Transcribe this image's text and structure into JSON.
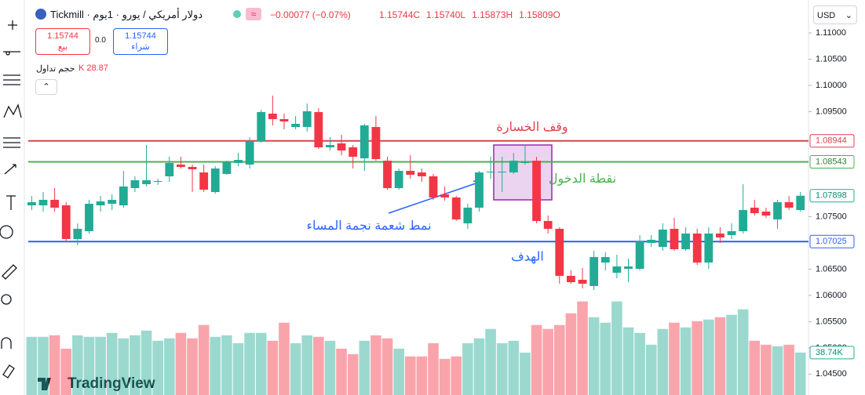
{
  "toolbar": {
    "symbol": "دولار أمريكي / يورو · 1يوم · Tickmill",
    "mode_icon": "≈",
    "change": "−0.00077 (−0.07%)",
    "ohlc": [
      "1.15744C",
      "1.15740L",
      "1.15873H",
      "1.15809O"
    ],
    "sell_price": "1.15744",
    "sell_label": "بيع",
    "spread": "0.0",
    "buy_price": "1.15744",
    "buy_label": "شراء",
    "volume_label": "حجم تداول",
    "volume_value": "K 28.87"
  },
  "currency": "USD",
  "logo": "TradingView",
  "chart_data": {
    "type": "candlestick",
    "up_color": "#22ab94",
    "down_color": "#f23645",
    "open": [
      1.07715,
      1.07715,
      1.0782,
      1.07715,
      1.07073,
      1.07223,
      1.07715,
      1.07745,
      1.07715,
      1.08044,
      1.08119,
      1.08163,
      1.08268,
      1.08492,
      1.08447,
      1.08342,
      1.07969,
      1.08313,
      1.08522,
      1.08492,
      1.0894,
      1.09462,
      1.09358,
      1.09208,
      1.09208,
      1.09492,
      1.0882,
      1.08895,
      1.0882,
      1.08611,
      1.09208,
      1.08566,
      1.08044,
      1.08372,
      1.08342,
      1.08268,
      1.07924,
      1.07865,
      1.07372,
      1.07671,
      1.08342,
      1.08342,
      1.08342,
      1.08522,
      1.08566,
      1.07417,
      1.07268,
      1.06372,
      1.06297,
      1.06178,
      1.06626,
      1.06431,
      1.06506,
      1.06506,
      1.06999,
      1.06924,
      1.07268,
      1.06879,
      1.07178,
      1.06626,
      1.07178,
      1.07148,
      1.07223,
      1.07671,
      1.07596,
      1.07447,
      1.07775,
      1.07626
    ],
    "high": [
      1.07895,
      1.07969,
      1.08044,
      1.07775,
      1.07372,
      1.0782,
      1.07895,
      1.07924,
      1.08372,
      1.08268,
      1.08865,
      1.08223,
      1.08641,
      1.08641,
      1.08492,
      1.08492,
      1.08462,
      1.08566,
      1.08716,
      1.09014,
      1.09537,
      1.09806,
      1.09462,
      1.09417,
      1.09656,
      1.09567,
      1.09014,
      1.09059,
      1.08865,
      1.09268,
      1.09417,
      1.08641,
      1.08417,
      1.08671,
      1.08417,
      1.08313,
      1.08074,
      1.07895,
      1.07745,
      1.08372,
      1.08641,
      1.08641,
      1.08716,
      1.08865,
      1.08641,
      1.07521,
      1.07297,
      1.06476,
      1.06521,
      1.0685,
      1.0682,
      1.06775,
      1.067,
      1.07148,
      1.07148,
      1.07372,
      1.07477,
      1.07297,
      1.07268,
      1.07297,
      1.07297,
      1.07372,
      1.08119,
      1.0782,
      1.07671,
      1.0782,
      1.07895,
      1.07969
    ],
    "low": [
      1.07626,
      1.07596,
      1.07596,
      1.07029,
      1.06954,
      1.07178,
      1.07596,
      1.07626,
      1.07671,
      1.07969,
      1.08074,
      1.08104,
      1.08163,
      1.08417,
      1.07969,
      1.07969,
      1.07939,
      1.08298,
      1.08462,
      1.08417,
      1.0891,
      1.09238,
      1.09164,
      1.09164,
      1.09119,
      1.0879,
      1.08761,
      1.08671,
      1.08417,
      1.08372,
      1.08566,
      1.08014,
      1.08014,
      1.08223,
      1.08163,
      1.0782,
      1.07805,
      1.07417,
      1.07268,
      1.07596,
      1.08223,
      1.07969,
      1.08313,
      1.08492,
      1.07372,
      1.07178,
      1.06222,
      1.06222,
      1.06133,
      1.06103,
      1.06476,
      1.06327,
      1.06252,
      1.06476,
      1.06924,
      1.0685,
      1.0685,
      1.0685,
      1.06581,
      1.06506,
      1.06999,
      1.07073,
      1.07178,
      1.07521,
      1.07477,
      1.07268,
      1.07626,
      1.07596
    ],
    "close": [
      1.07775,
      1.0782,
      1.07671,
      1.07073,
      1.07268,
      1.07745,
      1.0779,
      1.0782,
      1.08074,
      1.08193,
      1.08193,
      1.08178,
      1.08522,
      1.08447,
      1.08402,
      1.08014,
      1.08417,
      1.08537,
      1.08581,
      1.0894,
      1.09492,
      1.09358,
      1.09313,
      1.09268,
      1.09507,
      1.0882,
      1.08865,
      1.08761,
      1.08641,
      1.09238,
      1.08596,
      1.08044,
      1.08372,
      1.08298,
      1.08268,
      1.07865,
      1.07865,
      1.07447,
      1.07671,
      1.08342,
      1.08357,
      1.08357,
      1.08566,
      1.08551,
      1.07417,
      1.07268,
      1.06372,
      1.06252,
      1.06222,
      1.0673,
      1.0673,
      1.06551,
      1.06551,
      1.07029,
      1.07059,
      1.07253,
      1.06879,
      1.07178,
      1.06626,
      1.07178,
      1.07103,
      1.07223,
      1.07626,
      1.07566,
      1.07521,
      1.07775,
      1.07671,
      1.07898
    ],
    "volume": {
      "values": [
        53.1,
        53.1,
        54.5,
        42.3,
        54.5,
        53.1,
        53.1,
        56.7,
        51.7,
        54.5,
        58.8,
        49.5,
        51.7,
        56.7,
        51.7,
        63.9,
        53.1,
        54.5,
        47.3,
        56.7,
        56.7,
        49.5,
        66.0,
        47.3,
        54.5,
        53.1,
        49.5,
        42.3,
        37.3,
        49.5,
        54.5,
        51.7,
        42.3,
        35.2,
        35.2,
        47.3,
        33.0,
        35.2,
        47.3,
        51.7,
        60.3,
        47.3,
        49.5,
        38.7,
        63.9,
        60.3,
        63.9,
        74.6,
        85.4,
        71.0,
        66.0,
        85.4,
        61.7,
        56.7,
        45.9,
        60.3,
        66.0,
        61.7,
        67.4,
        68.9,
        71.0,
        73.2,
        78.2,
        49.5,
        45.9,
        44.5,
        45.9,
        38.74
      ],
      "last_value_label": "38.74K",
      "ylim": [
        0,
        93
      ]
    },
    "ylim": [
      1.04102,
      1.11627
    ],
    "yticks": [
      {
        "value": 1.11,
        "label": "1.11000"
      },
      {
        "value": 1.105,
        "label": "1.10500"
      },
      {
        "value": 1.1,
        "label": "1.10000"
      },
      {
        "value": 1.095,
        "label": "1.09500"
      },
      {
        "value": 1.075,
        "label": "1.07500"
      },
      {
        "value": 1.065,
        "label": "1.06500"
      },
      {
        "value": 1.06,
        "label": "1.06000"
      },
      {
        "value": 1.055,
        "label": "1.05500"
      },
      {
        "value": 1.05,
        "label": "1.05000"
      },
      {
        "value": 1.045,
        "label": "1.04500"
      }
    ],
    "grid": false,
    "levels": [
      {
        "name": "وقف الخسارة",
        "value": 1.08944,
        "color": "#e0414f"
      },
      {
        "name": "نقطة الدخول",
        "value": 1.08543,
        "color": "#4caf50"
      },
      {
        "name": "الهدف",
        "value": 1.07025,
        "color": "#2962ff"
      }
    ],
    "annotation": "نمط شعمة نجمة المساء"
  }
}
